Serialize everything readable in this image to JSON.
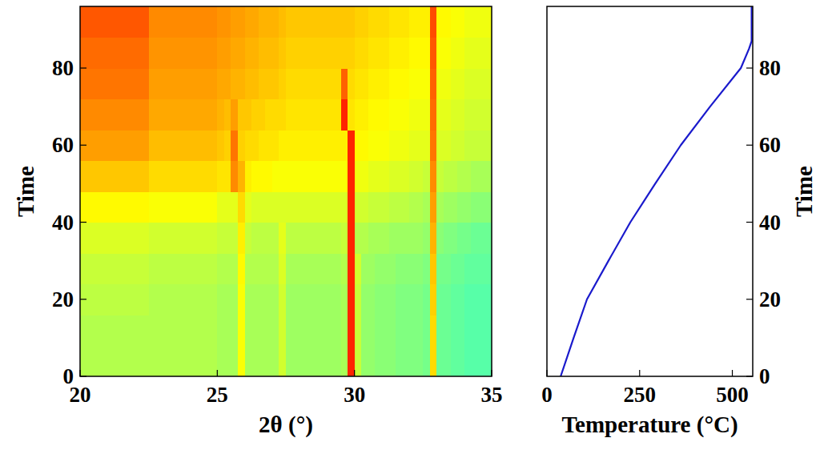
{
  "chart_data": [
    {
      "type": "heatmap",
      "x_label": "2θ (°)",
      "y_label": "Time",
      "xlim": [
        20,
        35
      ],
      "xticks": [
        20,
        25,
        30,
        35
      ],
      "ylim": [
        0,
        96
      ],
      "yticks": [
        0,
        20,
        40,
        60,
        80
      ],
      "zlim": [
        0,
        100
      ],
      "x_edges": [
        20,
        20.25,
        20.5,
        20.75,
        21,
        21.25,
        21.5,
        21.75,
        22,
        22.25,
        22.5,
        22.75,
        23,
        23.25,
        23.5,
        23.75,
        24,
        24.25,
        24.5,
        24.75,
        25,
        25.25,
        25.5,
        25.75,
        26,
        26.25,
        26.5,
        26.75,
        27,
        27.25,
        27.5,
        27.75,
        28,
        28.25,
        28.5,
        28.75,
        29,
        29.25,
        29.5,
        29.75,
        30,
        30.25,
        30.5,
        30.75,
        31,
        31.25,
        31.5,
        31.75,
        32,
        32.25,
        32.5,
        32.75,
        33,
        33.25,
        33.5,
        33.75,
        34,
        34.25,
        34.5,
        34.75,
        35
      ],
      "y_edges": [
        0,
        8,
        16,
        24,
        32,
        40,
        48,
        56,
        64,
        72,
        80,
        88,
        96
      ],
      "cells": [
        [
          55,
          55,
          55,
          55,
          55,
          55,
          55,
          55,
          55,
          55,
          55,
          55,
          55,
          55,
          55,
          55,
          55,
          55,
          55,
          55,
          54,
          54,
          54,
          62,
          54,
          54,
          54,
          54,
          54,
          58,
          53,
          53,
          53,
          53,
          53,
          53,
          53,
          53,
          54,
          84,
          57,
          52,
          52,
          51,
          51,
          51,
          50,
          50,
          50,
          50,
          49,
          66,
          48,
          48,
          47,
          47,
          46,
          46,
          46,
          46
        ],
        [
          55,
          55,
          55,
          55,
          55,
          55,
          55,
          55,
          55,
          55,
          55,
          55,
          55,
          55,
          55,
          55,
          55,
          55,
          55,
          55,
          54,
          54,
          54,
          62,
          54,
          54,
          54,
          54,
          54,
          58,
          53,
          53,
          53,
          53,
          53,
          53,
          53,
          53,
          54,
          84,
          57,
          52,
          52,
          51,
          51,
          51,
          50,
          50,
          50,
          50,
          49,
          66,
          48,
          48,
          47,
          47,
          46,
          46,
          46,
          46
        ],
        [
          56,
          56,
          56,
          56,
          56,
          56,
          56,
          56,
          56,
          56,
          55,
          55,
          55,
          55,
          55,
          55,
          55,
          55,
          55,
          55,
          54,
          54,
          54,
          62,
          54,
          54,
          54,
          54,
          54,
          58,
          53,
          53,
          53,
          53,
          53,
          53,
          53,
          53,
          54,
          84,
          57,
          52,
          52,
          51,
          51,
          51,
          50,
          50,
          50,
          50,
          49,
          67,
          48,
          48,
          47,
          47,
          46,
          46,
          46,
          46
        ],
        [
          57,
          57,
          57,
          57,
          57,
          57,
          57,
          57,
          57,
          57,
          56,
          56,
          56,
          56,
          56,
          56,
          56,
          56,
          56,
          56,
          55,
          55,
          55,
          63,
          55,
          55,
          55,
          55,
          55,
          59,
          54,
          54,
          54,
          54,
          54,
          54,
          54,
          54,
          55,
          84,
          58,
          53,
          53,
          52,
          52,
          52,
          51,
          51,
          51,
          51,
          50,
          68,
          49,
          49,
          48,
          48,
          47,
          47,
          47,
          47
        ],
        [
          59,
          59,
          59,
          59,
          59,
          59,
          59,
          59,
          59,
          59,
          58,
          58,
          58,
          58,
          58,
          58,
          58,
          58,
          58,
          58,
          57,
          57,
          57,
          64,
          57,
          56,
          56,
          56,
          56,
          60,
          56,
          56,
          56,
          56,
          56,
          56,
          56,
          56,
          57,
          84,
          55,
          55,
          54,
          54,
          54,
          53,
          53,
          53,
          53,
          53,
          52,
          70,
          51,
          50,
          50,
          49,
          49,
          48,
          48,
          48
        ],
        [
          63,
          63,
          63,
          63,
          63,
          63,
          63,
          63,
          63,
          63,
          62,
          62,
          62,
          62,
          62,
          62,
          62,
          62,
          62,
          62,
          60,
          60,
          60,
          66,
          60,
          59,
          59,
          59,
          59,
          59,
          59,
          59,
          59,
          59,
          59,
          59,
          59,
          59,
          59,
          84,
          58,
          58,
          57,
          57,
          57,
          56,
          56,
          56,
          55,
          55,
          54,
          72,
          54,
          53,
          53,
          52,
          52,
          51,
          51,
          51
        ],
        [
          68,
          68,
          68,
          68,
          68,
          68,
          68,
          68,
          68,
          68,
          66,
          66,
          66,
          66,
          66,
          66,
          66,
          66,
          66,
          66,
          65,
          65,
          74,
          70,
          64,
          63,
          63,
          63,
          62,
          62,
          62,
          62,
          62,
          62,
          62,
          62,
          62,
          62,
          62,
          84,
          61,
          61,
          60,
          60,
          60,
          59,
          59,
          59,
          58,
          58,
          57,
          74,
          57,
          56,
          56,
          55,
          55,
          54,
          54,
          54
        ],
        [
          72,
          72,
          72,
          72,
          72,
          72,
          72,
          72,
          72,
          72,
          69,
          69,
          69,
          69,
          69,
          69,
          69,
          69,
          69,
          69,
          68,
          67,
          76,
          67,
          66,
          66,
          65,
          65,
          65,
          64,
          64,
          64,
          64,
          64,
          64,
          64,
          64,
          64,
          64,
          84,
          63,
          63,
          62,
          62,
          62,
          61,
          61,
          61,
          60,
          60,
          60,
          76,
          59,
          59,
          58,
          58,
          57,
          57,
          57,
          57
        ],
        [
          74,
          74,
          74,
          74,
          74,
          74,
          74,
          74,
          74,
          74,
          71,
          71,
          71,
          71,
          71,
          71,
          71,
          71,
          71,
          71,
          70,
          69,
          72,
          68,
          68,
          67,
          67,
          66,
          66,
          66,
          65,
          65,
          65,
          65,
          65,
          65,
          65,
          65,
          84,
          65,
          64,
          64,
          63,
          63,
          63,
          62,
          62,
          62,
          61,
          61,
          61,
          77,
          60,
          60,
          59,
          59,
          58,
          58,
          58,
          58
        ],
        [
          76,
          76,
          76,
          76,
          76,
          76,
          76,
          76,
          76,
          76,
          72,
          72,
          72,
          72,
          72,
          72,
          72,
          72,
          72,
          72,
          71,
          71,
          70,
          70,
          69,
          69,
          68,
          68,
          68,
          67,
          66,
          66,
          66,
          66,
          66,
          66,
          66,
          66,
          78,
          66,
          65,
          65,
          64,
          64,
          64,
          63,
          63,
          63,
          62,
          62,
          62,
          78,
          61,
          61,
          60,
          60,
          59,
          59,
          59,
          59
        ],
        [
          77,
          77,
          77,
          77,
          77,
          77,
          77,
          77,
          77,
          77,
          73,
          73,
          73,
          73,
          73,
          73,
          73,
          73,
          73,
          73,
          72,
          72,
          71,
          71,
          70,
          70,
          69,
          69,
          69,
          68,
          67,
          67,
          67,
          67,
          67,
          67,
          67,
          67,
          67,
          67,
          66,
          66,
          65,
          65,
          65,
          64,
          64,
          64,
          63,
          63,
          63,
          79,
          62,
          62,
          61,
          61,
          60,
          60,
          60,
          60
        ],
        [
          79,
          79,
          79,
          79,
          79,
          79,
          79,
          79,
          79,
          79,
          74,
          74,
          74,
          74,
          74,
          74,
          74,
          74,
          74,
          74,
          73,
          73,
          72,
          72,
          71,
          71,
          70,
          70,
          70,
          69,
          68,
          68,
          68,
          68,
          68,
          68,
          68,
          68,
          68,
          68,
          67,
          67,
          66,
          66,
          66,
          65,
          65,
          65,
          64,
          64,
          64,
          80,
          63,
          63,
          62,
          62,
          61,
          61,
          61,
          61
        ]
      ]
    },
    {
      "type": "line",
      "x_label": "Temperature (°C)",
      "y_label": "Time",
      "xlim": [
        0,
        555
      ],
      "xticks": [
        0,
        250,
        500
      ],
      "ylim": [
        0,
        96
      ],
      "yticks": [
        0,
        20,
        40,
        60,
        80
      ],
      "color": "#1a1acc",
      "x": [
        37,
        72,
        108,
        166,
        225,
        292,
        361,
        440,
        523,
        545,
        552,
        552
      ],
      "values": [
        0,
        10,
        20,
        30,
        40,
        50,
        60,
        70,
        80,
        85,
        87,
        96
      ]
    }
  ]
}
